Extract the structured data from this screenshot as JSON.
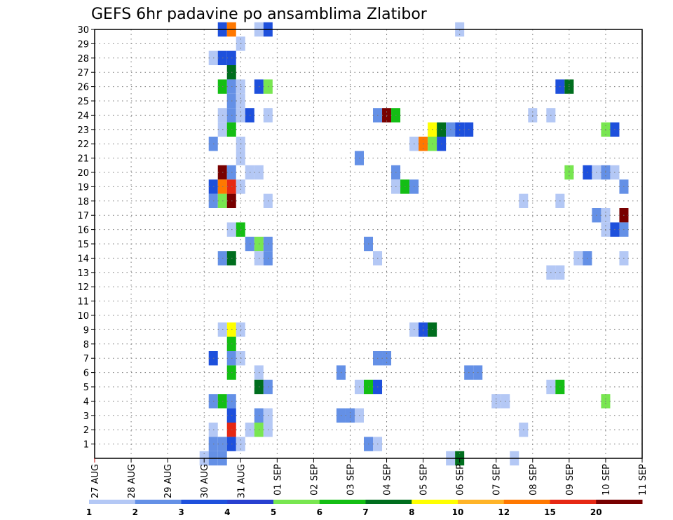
{
  "chart_data": {
    "type": "heatmap",
    "title": "GEFS 6hr padavine po ansamblima Zlatibor",
    "x_tick_labels": [
      "27 AUG",
      "28 AUG",
      "29 AUG",
      "30 AUG",
      "31 AUG",
      "01 SEP",
      "02 SEP",
      "03 SEP",
      "04 SEP",
      "05 SEP",
      "06 SEP",
      "07 SEP",
      "08 SEP",
      "09 SEP",
      "10 SEP",
      "11 SEP"
    ],
    "y_tick_labels": [
      "1",
      "2",
      "3",
      "4",
      "5",
      "6",
      "7",
      "8",
      "9",
      "10",
      "11",
      "12",
      "13",
      "14",
      "15",
      "16",
      "17",
      "18",
      "19",
      "20",
      "21",
      "22",
      "23",
      "24",
      "25",
      "26",
      "27",
      "28",
      "29",
      "30"
    ],
    "x_range_days": [
      0,
      15
    ],
    "y_range": [
      0,
      30
    ],
    "grid": true,
    "legend_position": "bottom",
    "legend": {
      "labels": [
        "1",
        "2",
        "3",
        "4",
        "5",
        "6",
        "7",
        "8",
        "10",
        "12",
        "15",
        "20"
      ],
      "colors": [
        "#b4c8f5",
        "#6490e6",
        "#1e50dc",
        "#2840d0",
        "#78e650",
        "#14be14",
        "#006e1e",
        "#ffff00",
        "#ffb428",
        "#ff7800",
        "#e62814",
        "#780000"
      ]
    },
    "cells": [
      {
        "member": 30,
        "day": 3.5,
        "bin": 2
      },
      {
        "member": 30,
        "day": 3.75,
        "bin": 9
      },
      {
        "member": 30,
        "day": 4.5,
        "bin": 0
      },
      {
        "member": 30,
        "day": 4.75,
        "bin": 2
      },
      {
        "member": 30,
        "day": 10,
        "bin": 0
      },
      {
        "member": 29,
        "day": 4,
        "bin": 0
      },
      {
        "member": 28,
        "day": 3.25,
        "bin": 0
      },
      {
        "member": 28,
        "day": 3.5,
        "bin": 2
      },
      {
        "member": 28,
        "day": 3.75,
        "bin": 2
      },
      {
        "member": 27,
        "day": 3.75,
        "bin": 6
      },
      {
        "member": 26,
        "day": 3.5,
        "bin": 5
      },
      {
        "member": 26,
        "day": 3.75,
        "bin": 1
      },
      {
        "member": 26,
        "day": 4,
        "bin": 0
      },
      {
        "member": 26,
        "day": 4.5,
        "bin": 2
      },
      {
        "member": 26,
        "day": 4.75,
        "bin": 4
      },
      {
        "member": 26,
        "day": 12.75,
        "bin": 2
      },
      {
        "member": 26,
        "day": 13,
        "bin": 6
      },
      {
        "member": 25,
        "day": 3.75,
        "bin": 1
      },
      {
        "member": 25,
        "day": 4,
        "bin": 0
      },
      {
        "member": 24,
        "day": 3.5,
        "bin": 0
      },
      {
        "member": 24,
        "day": 3.75,
        "bin": 1
      },
      {
        "member": 24,
        "day": 4,
        "bin": 0
      },
      {
        "member": 24,
        "day": 4.25,
        "bin": 2
      },
      {
        "member": 24,
        "day": 4.75,
        "bin": 0
      },
      {
        "member": 24,
        "day": 7.75,
        "bin": 1
      },
      {
        "member": 24,
        "day": 8,
        "bin": 11
      },
      {
        "member": 24,
        "day": 8.25,
        "bin": 5
      },
      {
        "member": 24,
        "day": 12,
        "bin": 0
      },
      {
        "member": 24,
        "day": 12.5,
        "bin": 0
      },
      {
        "member": 23,
        "day": 3.5,
        "bin": 0
      },
      {
        "member": 23,
        "day": 3.75,
        "bin": 5
      },
      {
        "member": 23,
        "day": 9.25,
        "bin": 7
      },
      {
        "member": 23,
        "day": 9.5,
        "bin": 6
      },
      {
        "member": 23,
        "day": 9.75,
        "bin": 1
      },
      {
        "member": 23,
        "day": 10,
        "bin": 2
      },
      {
        "member": 23,
        "day": 10.25,
        "bin": 2
      },
      {
        "member": 23,
        "day": 14,
        "bin": 4
      },
      {
        "member": 23,
        "day": 14.25,
        "bin": 2
      },
      {
        "member": 22,
        "day": 3.25,
        "bin": 1
      },
      {
        "member": 22,
        "day": 4,
        "bin": 0
      },
      {
        "member": 22,
        "day": 8.75,
        "bin": 0
      },
      {
        "member": 22,
        "day": 9,
        "bin": 9
      },
      {
        "member": 22,
        "day": 9.25,
        "bin": 4
      },
      {
        "member": 22,
        "day": 9.5,
        "bin": 2
      },
      {
        "member": 21,
        "day": 4,
        "bin": 0
      },
      {
        "member": 21,
        "day": 7.25,
        "bin": 1
      },
      {
        "member": 20,
        "day": 3.5,
        "bin": 11
      },
      {
        "member": 20,
        "day": 3.75,
        "bin": 1
      },
      {
        "member": 20,
        "day": 4.25,
        "bin": 0
      },
      {
        "member": 20,
        "day": 4.5,
        "bin": 0
      },
      {
        "member": 20,
        "day": 8.25,
        "bin": 1
      },
      {
        "member": 20,
        "day": 13,
        "bin": 4
      },
      {
        "member": 20,
        "day": 13.5,
        "bin": 2
      },
      {
        "member": 20,
        "day": 13.75,
        "bin": 0
      },
      {
        "member": 20,
        "day": 14,
        "bin": 1
      },
      {
        "member": 20,
        "day": 14.25,
        "bin": 0
      },
      {
        "member": 19,
        "day": 3.25,
        "bin": 2
      },
      {
        "member": 19,
        "day": 3.5,
        "bin": 9
      },
      {
        "member": 19,
        "day": 3.75,
        "bin": 10
      },
      {
        "member": 19,
        "day": 4,
        "bin": 0
      },
      {
        "member": 19,
        "day": 8.25,
        "bin": 0
      },
      {
        "member": 19,
        "day": 8.5,
        "bin": 5
      },
      {
        "member": 19,
        "day": 8.75,
        "bin": 1
      },
      {
        "member": 19,
        "day": 14.5,
        "bin": 1
      },
      {
        "member": 18,
        "day": 3.25,
        "bin": 1
      },
      {
        "member": 18,
        "day": 3.5,
        "bin": 4
      },
      {
        "member": 18,
        "day": 3.75,
        "bin": 11
      },
      {
        "member": 18,
        "day": 4.75,
        "bin": 0
      },
      {
        "member": 18,
        "day": 11.75,
        "bin": 0
      },
      {
        "member": 18,
        "day": 12.75,
        "bin": 0
      },
      {
        "member": 17,
        "day": 13.75,
        "bin": 1
      },
      {
        "member": 17,
        "day": 14,
        "bin": 0
      },
      {
        "member": 17,
        "day": 14.5,
        "bin": 11
      },
      {
        "member": 16,
        "day": 3.75,
        "bin": 0
      },
      {
        "member": 16,
        "day": 4,
        "bin": 5
      },
      {
        "member": 16,
        "day": 14,
        "bin": 0
      },
      {
        "member": 16,
        "day": 14.25,
        "bin": 2
      },
      {
        "member": 16,
        "day": 14.5,
        "bin": 1
      },
      {
        "member": 15,
        "day": 4.25,
        "bin": 1
      },
      {
        "member": 15,
        "day": 4.5,
        "bin": 4
      },
      {
        "member": 15,
        "day": 4.75,
        "bin": 1
      },
      {
        "member": 15,
        "day": 7.5,
        "bin": 1
      },
      {
        "member": 14,
        "day": 3.5,
        "bin": 1
      },
      {
        "member": 14,
        "day": 3.75,
        "bin": 6
      },
      {
        "member": 14,
        "day": 4.5,
        "bin": 0
      },
      {
        "member": 14,
        "day": 4.75,
        "bin": 1
      },
      {
        "member": 14,
        "day": 7.75,
        "bin": 0
      },
      {
        "member": 14,
        "day": 13.25,
        "bin": 0
      },
      {
        "member": 14,
        "day": 13.5,
        "bin": 1
      },
      {
        "member": 14,
        "day": 14.5,
        "bin": 0
      },
      {
        "member": 13,
        "day": 12.5,
        "bin": 0
      },
      {
        "member": 13,
        "day": 12.75,
        "bin": 0
      },
      {
        "member": 9,
        "day": 3.75,
        "bin": 7
      },
      {
        "member": 9,
        "day": 3.5,
        "bin": 0
      },
      {
        "member": 9,
        "day": 4,
        "bin": 0
      },
      {
        "member": 9,
        "day": 8.75,
        "bin": 0
      },
      {
        "member": 9,
        "day": 9,
        "bin": 2
      },
      {
        "member": 9,
        "day": 9.25,
        "bin": 6
      },
      {
        "member": 8,
        "day": 3.75,
        "bin": 5
      },
      {
        "member": 7,
        "day": 3.25,
        "bin": 2
      },
      {
        "member": 7,
        "day": 3.75,
        "bin": 1
      },
      {
        "member": 7,
        "day": 4,
        "bin": 0
      },
      {
        "member": 7,
        "day": 7.75,
        "bin": 1
      },
      {
        "member": 7,
        "day": 8,
        "bin": 1
      },
      {
        "member": 6,
        "day": 3.75,
        "bin": 5
      },
      {
        "member": 6,
        "day": 4.5,
        "bin": 0
      },
      {
        "member": 6,
        "day": 6.75,
        "bin": 1
      },
      {
        "member": 6,
        "day": 10.25,
        "bin": 1
      },
      {
        "member": 6,
        "day": 10.5,
        "bin": 1
      },
      {
        "member": 5,
        "day": 4.5,
        "bin": 6
      },
      {
        "member": 5,
        "day": 4.75,
        "bin": 1
      },
      {
        "member": 5,
        "day": 7.25,
        "bin": 0
      },
      {
        "member": 5,
        "day": 7.5,
        "bin": 5
      },
      {
        "member": 5,
        "day": 7.75,
        "bin": 2
      },
      {
        "member": 5,
        "day": 12.5,
        "bin": 0
      },
      {
        "member": 5,
        "day": 12.75,
        "bin": 5
      },
      {
        "member": 4,
        "day": 3.25,
        "bin": 1
      },
      {
        "member": 4,
        "day": 3.5,
        "bin": 5
      },
      {
        "member": 4,
        "day": 3.75,
        "bin": 1
      },
      {
        "member": 4,
        "day": 11,
        "bin": 0
      },
      {
        "member": 4,
        "day": 11.25,
        "bin": 0
      },
      {
        "member": 4,
        "day": 14,
        "bin": 4
      },
      {
        "member": 3,
        "day": 3.75,
        "bin": 2
      },
      {
        "member": 3,
        "day": 4.5,
        "bin": 1
      },
      {
        "member": 3,
        "day": 4.75,
        "bin": 0
      },
      {
        "member": 3,
        "day": 6.75,
        "bin": 1
      },
      {
        "member": 3,
        "day": 7,
        "bin": 1
      },
      {
        "member": 3,
        "day": 7.25,
        "bin": 0
      },
      {
        "member": 2,
        "day": 3.25,
        "bin": 0
      },
      {
        "member": 2,
        "day": 3.75,
        "bin": 10
      },
      {
        "member": 2,
        "day": 4.25,
        "bin": 0
      },
      {
        "member": 2,
        "day": 4.5,
        "bin": 4
      },
      {
        "member": 2,
        "day": 4.75,
        "bin": 0
      },
      {
        "member": 2,
        "day": 11.75,
        "bin": 0
      },
      {
        "member": 1,
        "day": 3.25,
        "bin": 1
      },
      {
        "member": 1,
        "day": 3.5,
        "bin": 1
      },
      {
        "member": 1,
        "day": 3.75,
        "bin": 2
      },
      {
        "member": 1,
        "day": 4,
        "bin": 0
      },
      {
        "member": 1,
        "day": 7.5,
        "bin": 1
      },
      {
        "member": 1,
        "day": 7.75,
        "bin": 0
      },
      {
        "member": 0,
        "day": 3,
        "bin": 0
      },
      {
        "member": 0,
        "day": 3.25,
        "bin": 1
      },
      {
        "member": 0,
        "day": 3.5,
        "bin": 1
      },
      {
        "member": 0,
        "day": 9.75,
        "bin": 0
      },
      {
        "member": 0,
        "day": 10,
        "bin": 6
      },
      {
        "member": 0,
        "day": 11.5,
        "bin": 0
      }
    ]
  }
}
